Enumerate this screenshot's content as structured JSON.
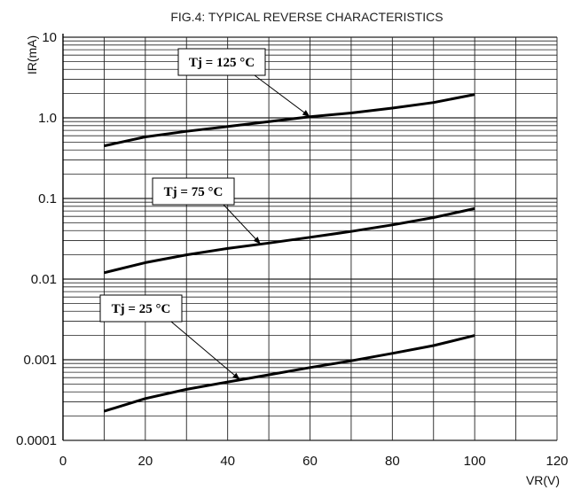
{
  "chart_data": {
    "type": "line",
    "title": "FIG.4: TYPICAL REVERSE CHARACTERISTICS",
    "xlabel": "VR(V)",
    "ylabel": "IR(mA)",
    "xlim": [
      0,
      120
    ],
    "ylim": [
      0.0001,
      10
    ],
    "yscale": "log",
    "grid": true,
    "x_ticks": [
      "0",
      "20",
      "40",
      "60",
      "80",
      "100",
      "120"
    ],
    "y_ticks": [
      "10",
      "1.0",
      "0.1",
      "0.01",
      "0.001",
      "0.0001"
    ],
    "series": [
      {
        "name": "Tj = 125 °C",
        "x": [
          10,
          20,
          30,
          40,
          50,
          60,
          70,
          80,
          90,
          100
        ],
        "y": [
          0.45,
          0.58,
          0.68,
          0.78,
          0.9,
          1.03,
          1.15,
          1.32,
          1.55,
          1.95
        ]
      },
      {
        "name": "Tj = 75 °C",
        "x": [
          10,
          20,
          30,
          40,
          50,
          60,
          70,
          80,
          90,
          100
        ],
        "y": [
          0.012,
          0.016,
          0.02,
          0.024,
          0.028,
          0.033,
          0.039,
          0.047,
          0.058,
          0.075
        ]
      },
      {
        "name": "Tj = 25 °C",
        "x": [
          10,
          20,
          30,
          40,
          50,
          60,
          70,
          80,
          90,
          100
        ],
        "y": [
          0.00023,
          0.00033,
          0.00043,
          0.00053,
          0.00065,
          0.0008,
          0.00097,
          0.0012,
          0.0015,
          0.002
        ]
      }
    ],
    "annotations": [
      {
        "text": "Tj = 125 °C",
        "series": 0,
        "point_x": 60
      },
      {
        "text": "Tj = 75 °C",
        "series": 1,
        "point_x": 48
      },
      {
        "text": "Tj = 25 °C",
        "series": 2,
        "point_x": 43
      }
    ]
  }
}
